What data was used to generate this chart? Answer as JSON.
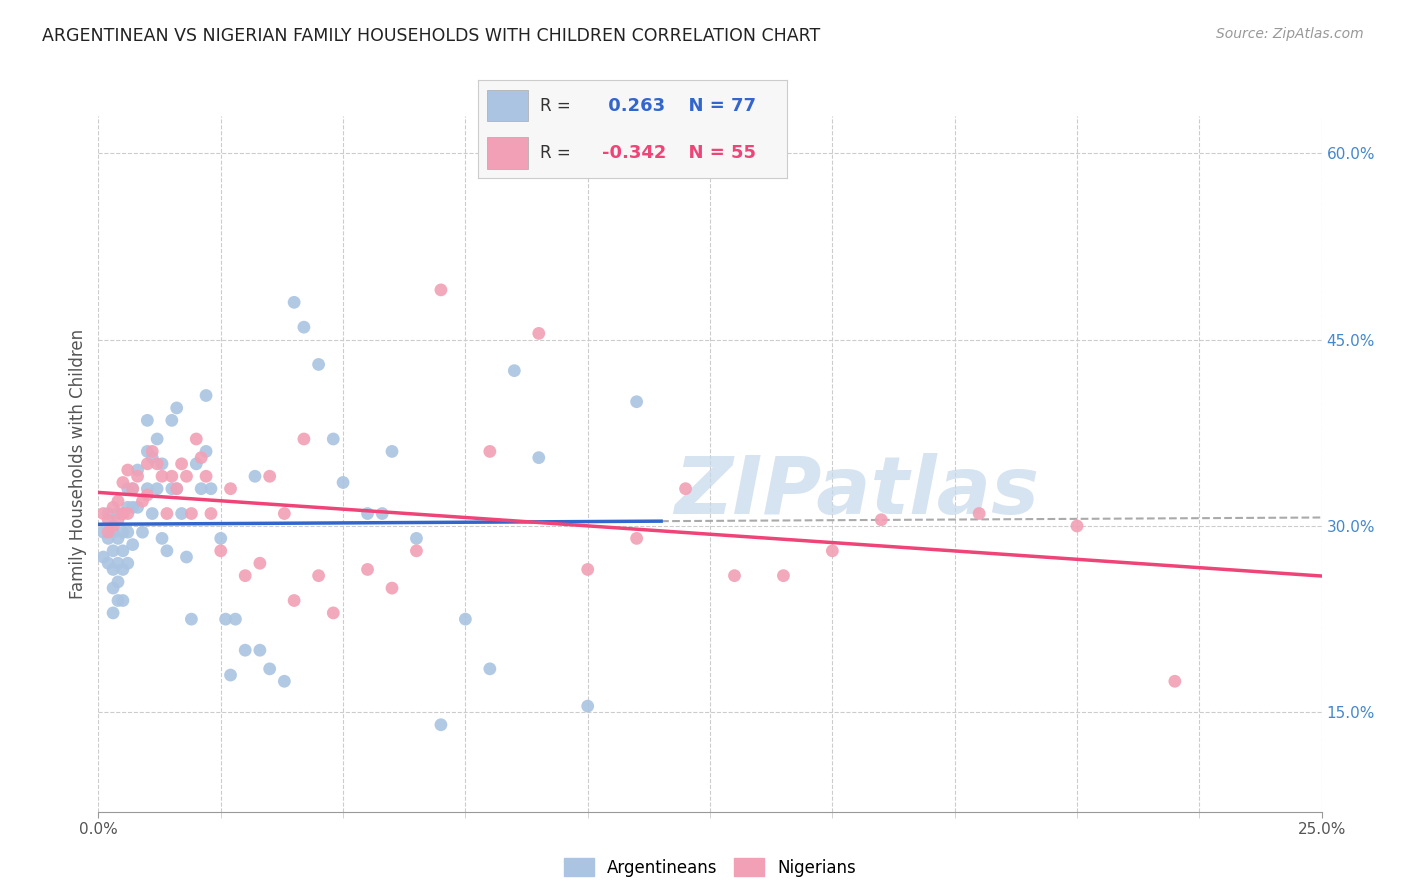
{
  "title": "ARGENTINEAN VS NIGERIAN FAMILY HOUSEHOLDS WITH CHILDREN CORRELATION CHART",
  "source": "Source: ZipAtlas.com",
  "ylabel": "Family Households with Children",
  "x_range": [
    0.0,
    0.25
  ],
  "y_range": [
    0.07,
    0.63
  ],
  "x_tick_positions": [
    0.0,
    0.025,
    0.05,
    0.075,
    0.1,
    0.125,
    0.15,
    0.175,
    0.2,
    0.225,
    0.25
  ],
  "x_tick_major": [
    0.0,
    0.25
  ],
  "x_tick_major_labels": [
    "0.0%",
    "25.0%"
  ],
  "y_tick_positions": [
    0.15,
    0.3,
    0.45,
    0.6
  ],
  "y_tick_labels": [
    "15.0%",
    "30.0%",
    "45.0%",
    "60.0%"
  ],
  "argentinean_color": "#aac4e2",
  "nigerian_color": "#f2a0b5",
  "argentinean_line_color": "#3366cc",
  "nigerian_line_color": "#ee4477",
  "dashed_line_color": "#aaaaaa",
  "R_arg": 0.263,
  "N_arg": 77,
  "R_nig": -0.342,
  "N_nig": 55,
  "background_color": "#ffffff",
  "grid_color": "#cccccc",
  "watermark_text": "ZIPatlas",
  "watermark_color": "#c5d8ec",
  "argentinean_x": [
    0.001,
    0.001,
    0.002,
    0.002,
    0.002,
    0.003,
    0.003,
    0.003,
    0.003,
    0.003,
    0.004,
    0.004,
    0.004,
    0.004,
    0.004,
    0.005,
    0.005,
    0.005,
    0.005,
    0.005,
    0.006,
    0.006,
    0.006,
    0.006,
    0.007,
    0.007,
    0.007,
    0.008,
    0.008,
    0.009,
    0.01,
    0.01,
    0.01,
    0.011,
    0.011,
    0.012,
    0.012,
    0.013,
    0.013,
    0.014,
    0.015,
    0.015,
    0.016,
    0.016,
    0.017,
    0.018,
    0.019,
    0.02,
    0.021,
    0.022,
    0.022,
    0.023,
    0.025,
    0.026,
    0.027,
    0.028,
    0.03,
    0.032,
    0.033,
    0.035,
    0.038,
    0.04,
    0.042,
    0.045,
    0.048,
    0.05,
    0.055,
    0.058,
    0.06,
    0.065,
    0.07,
    0.075,
    0.08,
    0.085,
    0.09,
    0.1,
    0.11
  ],
  "argentinean_y": [
    0.295,
    0.275,
    0.31,
    0.29,
    0.27,
    0.295,
    0.28,
    0.265,
    0.25,
    0.23,
    0.31,
    0.29,
    0.27,
    0.255,
    0.24,
    0.31,
    0.295,
    0.28,
    0.265,
    0.24,
    0.33,
    0.315,
    0.295,
    0.27,
    0.33,
    0.315,
    0.285,
    0.345,
    0.315,
    0.295,
    0.385,
    0.36,
    0.33,
    0.355,
    0.31,
    0.37,
    0.33,
    0.35,
    0.29,
    0.28,
    0.385,
    0.33,
    0.395,
    0.33,
    0.31,
    0.275,
    0.225,
    0.35,
    0.33,
    0.405,
    0.36,
    0.33,
    0.29,
    0.225,
    0.18,
    0.225,
    0.2,
    0.34,
    0.2,
    0.185,
    0.175,
    0.48,
    0.46,
    0.43,
    0.37,
    0.335,
    0.31,
    0.31,
    0.36,
    0.29,
    0.14,
    0.225,
    0.185,
    0.425,
    0.355,
    0.155,
    0.4
  ],
  "nigerian_x": [
    0.001,
    0.002,
    0.002,
    0.003,
    0.003,
    0.004,
    0.004,
    0.005,
    0.005,
    0.006,
    0.006,
    0.007,
    0.008,
    0.009,
    0.01,
    0.01,
    0.011,
    0.012,
    0.013,
    0.014,
    0.015,
    0.016,
    0.017,
    0.018,
    0.019,
    0.02,
    0.021,
    0.022,
    0.023,
    0.025,
    0.027,
    0.03,
    0.033,
    0.035,
    0.038,
    0.04,
    0.042,
    0.045,
    0.048,
    0.055,
    0.06,
    0.065,
    0.07,
    0.08,
    0.09,
    0.1,
    0.11,
    0.12,
    0.13,
    0.14,
    0.15,
    0.16,
    0.18,
    0.2,
    0.22
  ],
  "nigerian_y": [
    0.31,
    0.305,
    0.295,
    0.315,
    0.3,
    0.32,
    0.305,
    0.335,
    0.31,
    0.345,
    0.31,
    0.33,
    0.34,
    0.32,
    0.35,
    0.325,
    0.36,
    0.35,
    0.34,
    0.31,
    0.34,
    0.33,
    0.35,
    0.34,
    0.31,
    0.37,
    0.355,
    0.34,
    0.31,
    0.28,
    0.33,
    0.26,
    0.27,
    0.34,
    0.31,
    0.24,
    0.37,
    0.26,
    0.23,
    0.265,
    0.25,
    0.28,
    0.49,
    0.36,
    0.455,
    0.265,
    0.29,
    0.33,
    0.26,
    0.26,
    0.28,
    0.305,
    0.31,
    0.3,
    0.175
  ]
}
